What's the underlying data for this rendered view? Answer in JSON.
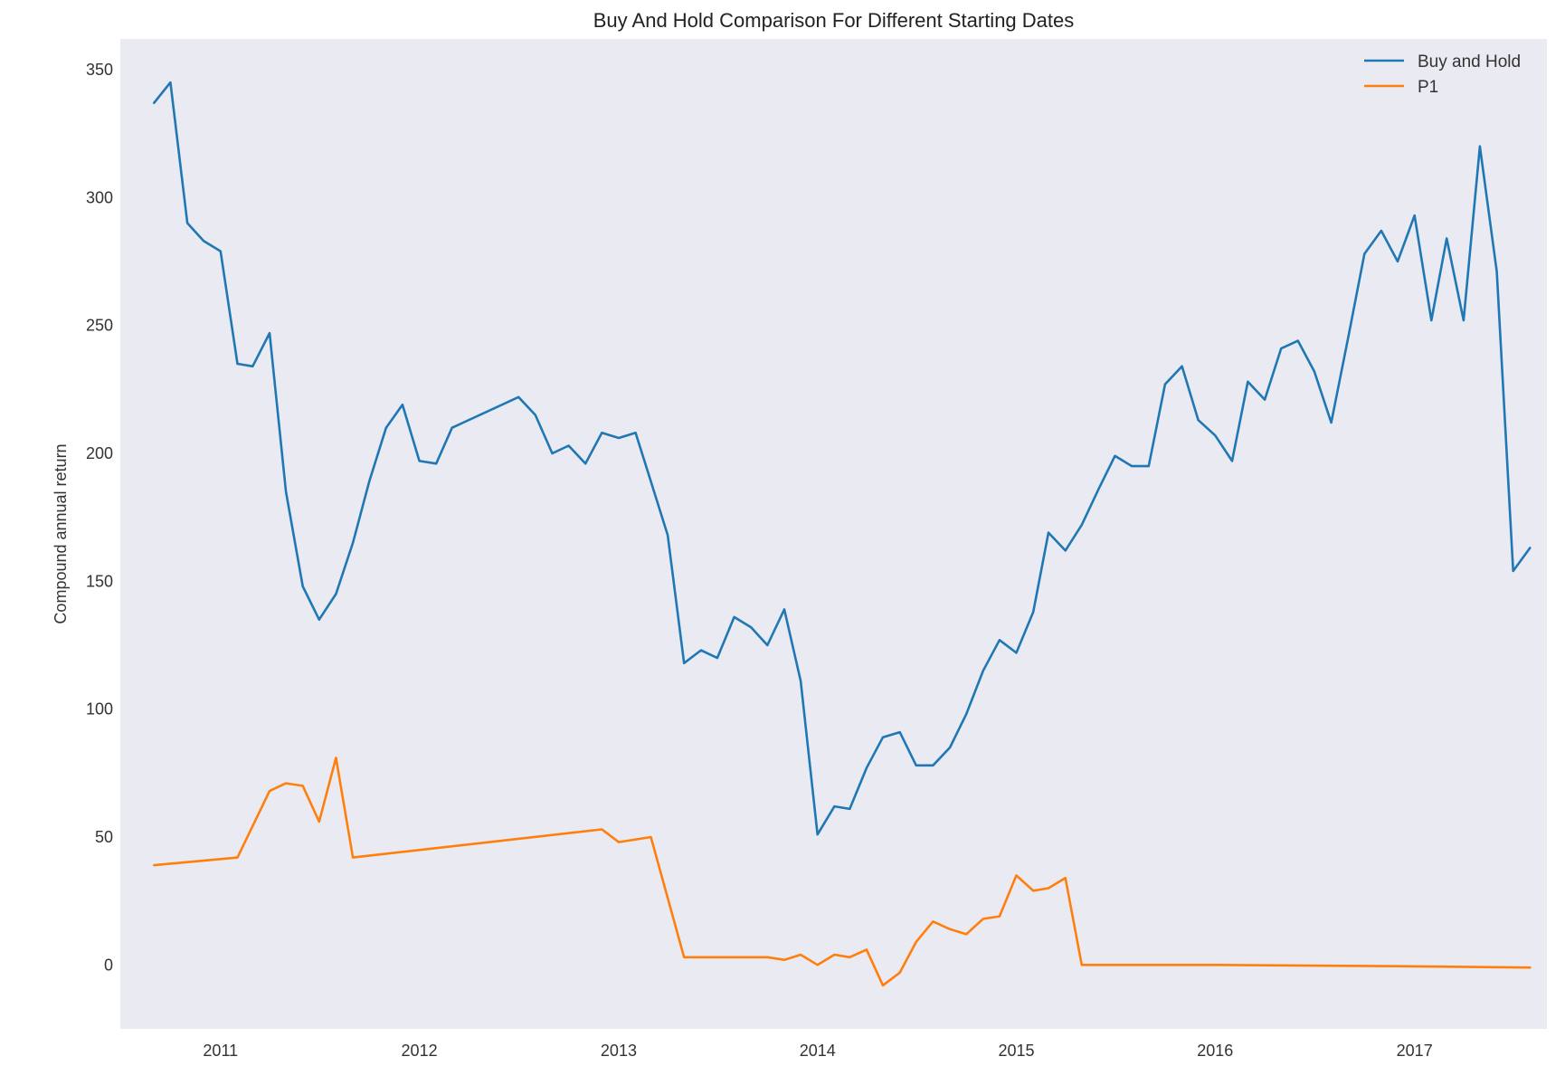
{
  "chart_data": {
    "type": "line",
    "title": "Buy And Hold Comparison For Different Starting Dates",
    "xlabel": "",
    "ylabel": "Compound annual return",
    "xlim": [
      "2010-07-01",
      "2017-09-01"
    ],
    "ylim": [
      -25,
      362
    ],
    "x_ticks": [
      "2011",
      "2012",
      "2013",
      "2014",
      "2015",
      "2016",
      "2017"
    ],
    "x_tick_dates": [
      "2011-01-01",
      "2012-01-01",
      "2013-01-01",
      "2014-01-01",
      "2015-01-01",
      "2016-01-01",
      "2017-01-01"
    ],
    "y_ticks": [
      0,
      50,
      100,
      150,
      200,
      250,
      300,
      350
    ],
    "grid": false,
    "background": "#eaeaf2",
    "legend_position": "top-right",
    "series": [
      {
        "name": "Buy and Hold",
        "color": "#1f77b4",
        "points": [
          [
            "2010-09-01",
            337
          ],
          [
            "2010-10-01",
            345
          ],
          [
            "2010-11-01",
            290
          ],
          [
            "2010-12-01",
            283
          ],
          [
            "2011-01-01",
            279
          ],
          [
            "2011-02-01",
            235
          ],
          [
            "2011-03-01",
            234
          ],
          [
            "2011-04-01",
            247
          ],
          [
            "2011-05-01",
            185
          ],
          [
            "2011-06-01",
            148
          ],
          [
            "2011-07-01",
            135
          ],
          [
            "2011-08-01",
            145
          ],
          [
            "2011-09-01",
            165
          ],
          [
            "2011-10-01",
            189
          ],
          [
            "2011-11-01",
            210
          ],
          [
            "2011-12-01",
            219
          ],
          [
            "2012-01-01",
            197
          ],
          [
            "2012-02-01",
            196
          ],
          [
            "2012-03-01",
            210
          ],
          [
            "2012-07-01",
            222
          ],
          [
            "2012-08-01",
            215
          ],
          [
            "2012-09-01",
            200
          ],
          [
            "2012-10-01",
            203
          ],
          [
            "2012-11-01",
            196
          ],
          [
            "2012-12-01",
            208
          ],
          [
            "2013-01-01",
            206
          ],
          [
            "2013-02-01",
            208
          ],
          [
            "2013-03-01",
            189
          ],
          [
            "2013-04-01",
            168
          ],
          [
            "2013-05-01",
            118
          ],
          [
            "2013-06-01",
            123
          ],
          [
            "2013-07-01",
            120
          ],
          [
            "2013-08-01",
            136
          ],
          [
            "2013-09-01",
            132
          ],
          [
            "2013-10-01",
            125
          ],
          [
            "2013-11-01",
            139
          ],
          [
            "2013-12-01",
            111
          ],
          [
            "2014-01-01",
            51
          ],
          [
            "2014-02-01",
            62
          ],
          [
            "2014-03-01",
            61
          ],
          [
            "2014-04-01",
            77
          ],
          [
            "2014-05-01",
            89
          ],
          [
            "2014-06-01",
            91
          ],
          [
            "2014-07-01",
            78
          ],
          [
            "2014-08-01",
            78
          ],
          [
            "2014-09-01",
            85
          ],
          [
            "2014-10-01",
            98
          ],
          [
            "2014-11-01",
            115
          ],
          [
            "2014-12-01",
            127
          ],
          [
            "2015-01-01",
            122
          ],
          [
            "2015-02-01",
            138
          ],
          [
            "2015-03-01",
            169
          ],
          [
            "2015-04-01",
            162
          ],
          [
            "2015-05-01",
            172
          ],
          [
            "2015-06-01",
            186
          ],
          [
            "2015-07-01",
            199
          ],
          [
            "2015-08-01",
            195
          ],
          [
            "2015-09-01",
            195
          ],
          [
            "2015-10-01",
            227
          ],
          [
            "2015-11-01",
            234
          ],
          [
            "2015-12-01",
            213
          ],
          [
            "2016-01-01",
            207
          ],
          [
            "2016-02-01",
            197
          ],
          [
            "2016-03-01",
            228
          ],
          [
            "2016-04-01",
            221
          ],
          [
            "2016-05-01",
            241
          ],
          [
            "2016-06-01",
            244
          ],
          [
            "2016-07-01",
            232
          ],
          [
            "2016-08-01",
            212
          ],
          [
            "2016-09-01",
            245
          ],
          [
            "2016-10-01",
            278
          ],
          [
            "2016-11-01",
            287
          ],
          [
            "2016-12-01",
            275
          ],
          [
            "2017-01-01",
            293
          ],
          [
            "2017-02-01",
            252
          ],
          [
            "2017-03-01",
            284
          ],
          [
            "2017-04-01",
            252
          ],
          [
            "2017-05-01",
            320
          ],
          [
            "2017-06-01",
            271
          ],
          [
            "2017-07-01",
            154
          ],
          [
            "2017-08-01",
            163
          ]
        ]
      },
      {
        "name": "P1",
        "color": "#ff7f0e",
        "points": [
          [
            "2010-09-01",
            39
          ],
          [
            "2011-02-01",
            42
          ],
          [
            "2011-04-01",
            68
          ],
          [
            "2011-05-01",
            71
          ],
          [
            "2011-06-01",
            70
          ],
          [
            "2011-07-01",
            56
          ],
          [
            "2011-08-01",
            81
          ],
          [
            "2011-09-01",
            42
          ],
          [
            "2012-12-01",
            53
          ],
          [
            "2013-01-01",
            48
          ],
          [
            "2013-03-01",
            50
          ],
          [
            "2013-05-01",
            3
          ],
          [
            "2013-10-01",
            3
          ],
          [
            "2013-11-01",
            2
          ],
          [
            "2013-12-01",
            4
          ],
          [
            "2014-01-01",
            0
          ],
          [
            "2014-02-01",
            4
          ],
          [
            "2014-03-01",
            3
          ],
          [
            "2014-04-01",
            6
          ],
          [
            "2014-05-01",
            -8
          ],
          [
            "2014-06-01",
            -3
          ],
          [
            "2014-07-01",
            9
          ],
          [
            "2014-08-01",
            17
          ],
          [
            "2014-09-01",
            14
          ],
          [
            "2014-10-01",
            12
          ],
          [
            "2014-11-01",
            18
          ],
          [
            "2014-12-01",
            19
          ],
          [
            "2015-01-01",
            35
          ],
          [
            "2015-02-01",
            29
          ],
          [
            "2015-03-01",
            30
          ],
          [
            "2015-04-01",
            34
          ],
          [
            "2015-05-01",
            0
          ],
          [
            "2016-01-01",
            0
          ],
          [
            "2016-12-01",
            -0.5
          ],
          [
            "2017-08-01",
            -1
          ]
        ]
      }
    ]
  }
}
